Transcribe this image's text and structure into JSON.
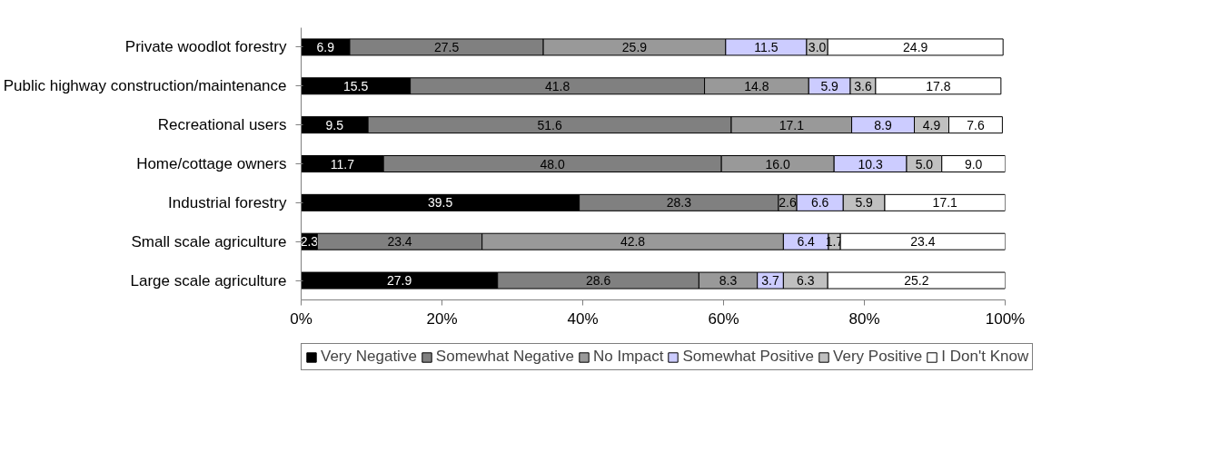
{
  "chart_data": {
    "type": "bar",
    "orientation": "horizontal",
    "stacked": true,
    "legend": "bottom",
    "categories": [
      "Private woodlot forestry",
      "Public highway construction/maintenance",
      "Recreational users",
      "Home/cottage owners",
      "Industrial forestry",
      "Small scale agriculture",
      "Large scale agriculture"
    ],
    "xlim": [
      0,
      100
    ],
    "xticks": [
      {
        "value": 0,
        "label": "0%"
      },
      {
        "value": 20,
        "label": "20%"
      },
      {
        "value": 40,
        "label": "40%"
      },
      {
        "value": 60,
        "label": "60%"
      },
      {
        "value": 80,
        "label": "80%"
      },
      {
        "value": 100,
        "label": "100%"
      }
    ],
    "series": [
      {
        "name": "Very Negative",
        "color": "#000000",
        "values": [
          6.9,
          15.5,
          9.5,
          11.7,
          39.5,
          2.3,
          27.9
        ],
        "value_labels": [
          "6.9",
          "15.5",
          "9.5",
          "11.7",
          "39.5",
          "2.3",
          "27.9"
        ]
      },
      {
        "name": "Somewhat Negative",
        "color": "#808080",
        "values": [
          27.5,
          41.8,
          51.6,
          48.0,
          28.3,
          23.4,
          28.6
        ],
        "value_labels": [
          "27.5",
          "41.8",
          "51.6",
          "48.0",
          "28.3",
          "23.4",
          "28.6"
        ]
      },
      {
        "name": "No Impact",
        "color": "#999999",
        "values": [
          25.9,
          14.8,
          17.1,
          16.0,
          2.6,
          42.8,
          8.3
        ],
        "value_labels": [
          "25.9",
          "14.8",
          "17.1",
          "16.0",
          "2.6",
          "42.8",
          "8.3"
        ]
      },
      {
        "name": "Somewhat Positive",
        "color": "#ccccff",
        "values": [
          11.5,
          5.9,
          8.9,
          10.3,
          6.6,
          6.4,
          3.7
        ],
        "value_labels": [
          "11.5",
          "5.9",
          "8.9",
          "10.3",
          "6.6",
          "6.4",
          "3.7"
        ]
      },
      {
        "name": "Very Positive",
        "color": "#c0c0c0",
        "values": [
          3.0,
          3.6,
          4.9,
          5.0,
          5.9,
          1.7,
          6.3
        ],
        "value_labels": [
          "3.0",
          "3.6",
          "4.9",
          "5.0",
          "5.9",
          "1.7",
          "6.3"
        ]
      },
      {
        "name": "I Don't Know",
        "color": "#ffffff",
        "values": [
          24.9,
          17.8,
          7.6,
          9.0,
          17.1,
          23.4,
          25.2
        ],
        "value_labels": [
          "24.9",
          "17.8",
          "7.6",
          "9.0",
          "17.1",
          "23.4",
          "25.2"
        ]
      }
    ]
  }
}
